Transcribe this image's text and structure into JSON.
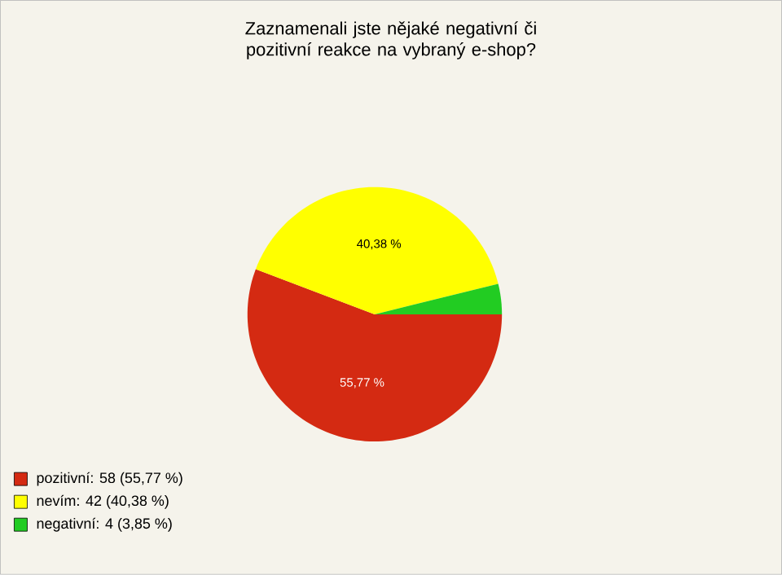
{
  "chart_data": {
    "type": "pie",
    "title": "Zaznamenali jste nějaké negativní či pozitivní reakce na vybraný e-shop?",
    "categories": [
      "pozitivní: 58 (55,77 %)",
      "nevím: 42 (40,38 %)",
      "negativní: 4 (3,85 %)"
    ],
    "values": [
      55.77,
      40.38,
      3.85
    ],
    "colors": [
      "#d42a12",
      "#ffff00",
      "#22cc22"
    ],
    "value_labels": [
      "55,77 %",
      "40,38 %",
      null
    ],
    "legend": "bottom left"
  }
}
